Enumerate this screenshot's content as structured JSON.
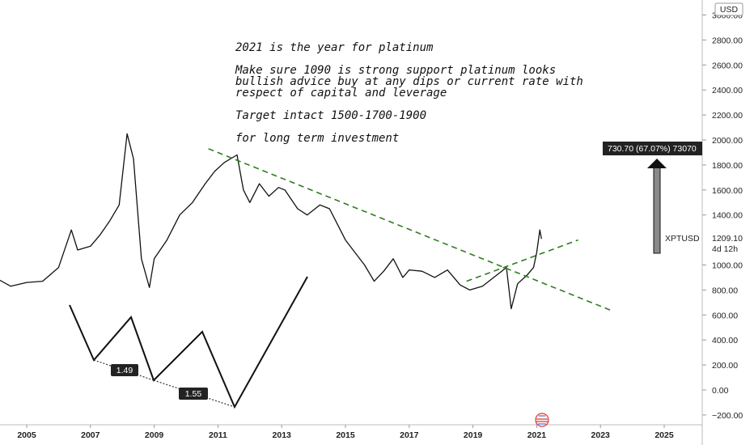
{
  "annotations": {
    "line1": "2021 is the year for platinum",
    "line2": "Make sure 1090 is strong support platinum looks",
    "line3": "bullish advice buy at any dips or current rate with",
    "line4": "respect of capital and leverage",
    "line5": "Target intact 1500-1700-1900",
    "line6": "for long term investment"
  },
  "price_axis": {
    "currency": "USD",
    "ticks": [
      3000,
      2800,
      2600,
      2400,
      2200,
      2000,
      1800,
      1600,
      1400,
      1200,
      1000,
      800,
      600,
      400,
      200,
      0,
      -200
    ],
    "tick_labels": [
      "3000.00",
      "2800.00",
      "2600.00",
      "2400.00",
      "2200.00",
      "2000.00",
      "1800.00",
      "1600.00",
      "1400.00",
      "1209.10",
      "1000.00",
      "800.00",
      "600.00",
      "400.00",
      "200.00",
      "0.00",
      "−200.00"
    ]
  },
  "time_axis": {
    "ticks": [
      "2005",
      "2007",
      "2009",
      "2011",
      "2013",
      "2015",
      "2017",
      "2019",
      "2021",
      "2023",
      "2025"
    ]
  },
  "measure_label": "730.70 (67.07%) 73070",
  "price_label": {
    "symbol": "XPTUSD",
    "value": "1209.10",
    "countdown": "4d 12h"
  },
  "pattern_labels": [
    "1.49",
    "1.55"
  ],
  "colors": {
    "price_line": "#111111",
    "trendline": "#2e7d1e",
    "label_bg": "#222222"
  },
  "chart_data": {
    "type": "line",
    "title": "",
    "series": [
      {
        "name": "XPTUSD",
        "x": [
          2004.0,
          2004.5,
          2005.0,
          2005.5,
          2006.0,
          2006.4,
          2006.6,
          2007.0,
          2007.3,
          2007.6,
          2007.9,
          2008.15,
          2008.35,
          2008.6,
          2008.85,
          2009.0,
          2009.4,
          2009.8,
          2010.2,
          2010.6,
          2010.9,
          2011.2,
          2011.6,
          2011.8,
          2012.0,
          2012.3,
          2012.6,
          2012.9,
          2013.1,
          2013.5,
          2013.8,
          2014.2,
          2014.5,
          2014.8,
          2015.0,
          2015.3,
          2015.6,
          2015.9,
          2016.2,
          2016.5,
          2016.8,
          2017.0,
          2017.4,
          2017.8,
          2018.2,
          2018.6,
          2018.9,
          2019.3,
          2019.6,
          2019.9,
          2020.05,
          2020.2,
          2020.4,
          2020.7,
          2020.9,
          2021.0,
          2021.1,
          2021.15
        ],
        "y": [
          900,
          830,
          860,
          870,
          980,
          1280,
          1120,
          1150,
          1240,
          1350,
          1480,
          2050,
          1850,
          1050,
          820,
          1050,
          1200,
          1400,
          1500,
          1650,
          1750,
          1820,
          1880,
          1600,
          1500,
          1650,
          1550,
          1620,
          1600,
          1450,
          1400,
          1480,
          1450,
          1300,
          1200,
          1100,
          1000,
          870,
          950,
          1050,
          900,
          960,
          950,
          900,
          960,
          840,
          800,
          830,
          890,
          950,
          980,
          650,
          850,
          920,
          980,
          1100,
          1280,
          1209
        ]
      }
    ],
    "trendlines": [
      {
        "name": "",
        "x": [
          2010.7,
          2023.3
        ],
        "y": [
          1930,
          640
        ]
      },
      {
        "name": "",
        "x": [
          2018.8,
          2022.3
        ],
        "y": [
          870,
          1200
        ]
      }
    ],
    "xlim": [
      2004.0,
      2026.7
    ],
    "ylim": [
      -260,
      3100
    ],
    "xlabel": "",
    "ylabel": "",
    "grid": false,
    "legend": "none"
  }
}
